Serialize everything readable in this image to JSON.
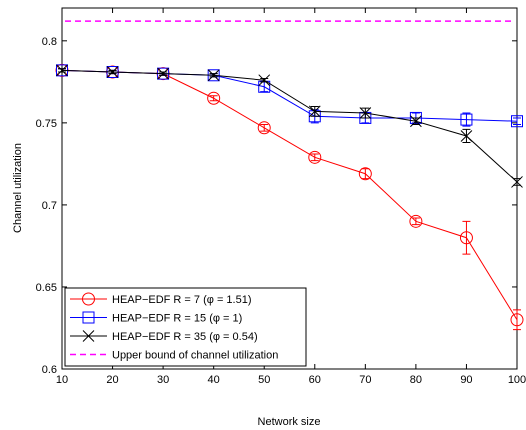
{
  "chart_data": {
    "type": "line",
    "xlabel": "Network size",
    "ylabel": "Channel utilization",
    "xlim": [
      10,
      100
    ],
    "ylim": [
      0.6,
      0.82
    ],
    "x": [
      10,
      20,
      30,
      40,
      50,
      60,
      70,
      80,
      90,
      100
    ],
    "x_ticks": [
      "10",
      "20",
      "30",
      "40",
      "50",
      "60",
      "70",
      "80",
      "90",
      "100"
    ],
    "y_ticks": [
      0.6,
      0.65,
      0.7,
      0.75,
      0.8
    ],
    "y_tick_labels": [
      "0.6",
      "0.65",
      "0.7",
      "0.75",
      "0.8"
    ],
    "grid": false,
    "legend_position": "bottom-left",
    "series": [
      {
        "name": "HEAP−EDF R = 7 (φ = 1.51)",
        "color": "#ff0000",
        "marker": "circle",
        "values": [
          0.782,
          0.781,
          0.78,
          0.765,
          0.747,
          0.729,
          0.719,
          0.69,
          0.68,
          0.63
        ],
        "errors": [
          0.001,
          0.001,
          0.001,
          0.0015,
          0.002,
          0.002,
          0.003,
          0.002,
          0.01,
          0.006
        ]
      },
      {
        "name": "HEAP−EDF R = 15 (φ = 1)",
        "color": "#0000ff",
        "marker": "square",
        "values": [
          0.782,
          0.781,
          0.78,
          0.779,
          0.772,
          0.754,
          0.753,
          0.753,
          0.752,
          0.751
        ],
        "errors": [
          0.001,
          0.001,
          0.001,
          0.001,
          0.003,
          0.004,
          0.003,
          0.003,
          0.004,
          0.002
        ]
      },
      {
        "name": "HEAP−EDF R = 35 (φ = 0.54)",
        "color": "#000000",
        "marker": "x",
        "values": [
          0.782,
          0.781,
          0.78,
          0.779,
          0.776,
          0.757,
          0.756,
          0.751,
          0.742,
          0.714
        ],
        "errors": [
          0.001,
          0.001,
          0.001,
          0.001,
          0.001,
          0.003,
          0.003,
          0.002,
          0.004,
          0.002
        ]
      }
    ],
    "reference_lines": [
      {
        "name": "Upper bound of channel utilization",
        "y": 0.812,
        "color": "#ff00ff",
        "style": "dashed"
      }
    ]
  }
}
